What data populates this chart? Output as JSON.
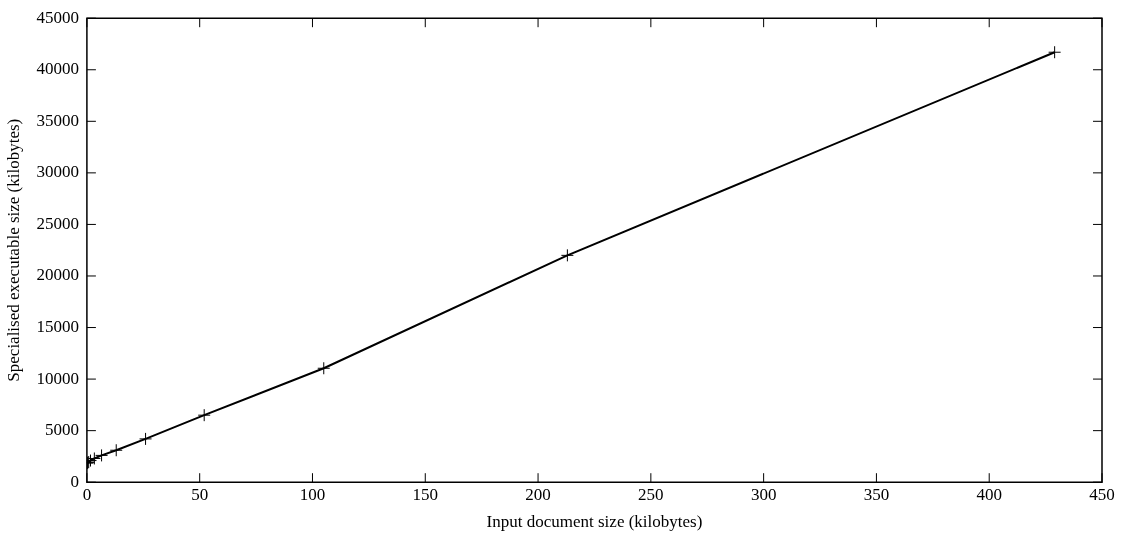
{
  "chart_data": {
    "type": "line",
    "xlabel": "Input document size (kilobytes)",
    "ylabel": "Specialised executable size (kilobytes)",
    "x": [
      0.2,
      0.4,
      0.8,
      1.6,
      3.3,
      6.5,
      13,
      26,
      52,
      105,
      213,
      429
    ],
    "series": [
      {
        "color": "#000000",
        "values": [
          1850,
          1900,
          1950,
          2100,
          2300,
          2600,
          3100,
          4200,
          6500,
          11050,
          22000,
          41700
        ]
      }
    ],
    "xlim": [
      0,
      450
    ],
    "xticks": [
      0,
      50,
      100,
      150,
      200,
      250,
      300,
      350,
      400,
      450
    ],
    "ylim": [
      0,
      45000
    ],
    "yticks": [
      0,
      5000,
      10000,
      15000,
      20000,
      25000,
      30000,
      35000,
      40000,
      45000
    ],
    "grid": false,
    "legend": false,
    "marker": "cross",
    "line_style": "solid"
  }
}
